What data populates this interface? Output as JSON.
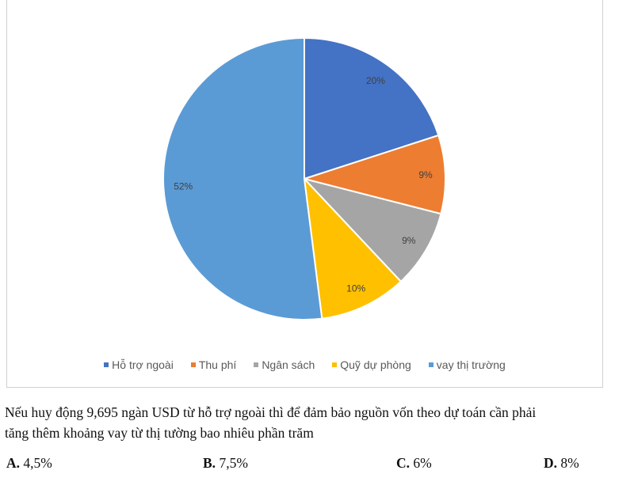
{
  "chart_data": {
    "type": "pie",
    "categories": [
      "Hỗ trợ ngoài",
      "Thu phí",
      "Ngân sách",
      "Quỹ dự phòng",
      "vay thị trường"
    ],
    "values": [
      20,
      9,
      9,
      10,
      52
    ],
    "labels": [
      "20%",
      "9%",
      "9%",
      "10%",
      "52%"
    ],
    "colors": [
      "#4472C4",
      "#ED7D31",
      "#A5A5A5",
      "#FFC000",
      "#5B9BD5"
    ],
    "legend": "bottom",
    "title": ""
  },
  "question": {
    "line1": "Nếu huy động 9,695 ngàn USD từ hỗ trợ ngoài thì để đảm bảo nguồn vốn theo dự toán cần phải",
    "line2": "tăng thêm khoảng vay từ thị tường bao nhiêu phần trăm"
  },
  "answers": [
    {
      "letter": "A.",
      "text": "4,5%"
    },
    {
      "letter": "B.",
      "text": "7,5%"
    },
    {
      "letter": "C.",
      "text": "6%"
    },
    {
      "letter": "D.",
      "text": "8%"
    }
  ]
}
